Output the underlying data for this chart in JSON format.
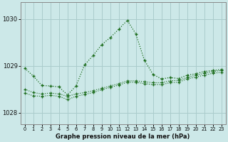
{
  "title": "Graphe pression niveau de la mer (hPa)",
  "background_color": "#cce8e8",
  "grid_color": "#aacccc",
  "line_color": "#1a6b1a",
  "ylim": [
    1027.75,
    1030.35
  ],
  "yticks": [
    1028,
    1029,
    1030
  ],
  "hours": [
    0,
    1,
    2,
    3,
    4,
    5,
    6,
    7,
    8,
    9,
    10,
    11,
    12,
    13,
    14,
    15,
    16,
    17,
    18,
    19,
    20,
    21,
    22,
    23
  ],
  "line1": [
    1028.95,
    1028.78,
    1028.58,
    1028.57,
    1028.55,
    1028.38,
    1028.57,
    1029.02,
    1029.22,
    1029.45,
    1029.6,
    1029.78,
    1029.97,
    1029.68,
    1029.12,
    1028.82,
    1028.72,
    1028.75,
    1028.73,
    1028.8,
    1028.83,
    1028.88,
    1028.9,
    1028.92
  ],
  "line2": [
    1028.5,
    1028.43,
    1028.4,
    1028.42,
    1028.4,
    1028.35,
    1028.4,
    1028.43,
    1028.47,
    1028.52,
    1028.57,
    1028.62,
    1028.68,
    1028.68,
    1028.66,
    1028.64,
    1028.64,
    1028.68,
    1028.69,
    1028.75,
    1028.8,
    1028.84,
    1028.88,
    1028.9
  ],
  "line3": [
    1028.42,
    1028.36,
    1028.35,
    1028.37,
    1028.35,
    1028.28,
    1028.35,
    1028.39,
    1028.43,
    1028.49,
    1028.54,
    1028.59,
    1028.65,
    1028.65,
    1028.62,
    1028.6,
    1028.6,
    1028.64,
    1028.65,
    1028.72,
    1028.76,
    1028.8,
    1028.84,
    1028.86
  ],
  "xlim": [
    -0.5,
    23.5
  ],
  "figsize": [
    3.2,
    2.0
  ],
  "dpi": 100
}
